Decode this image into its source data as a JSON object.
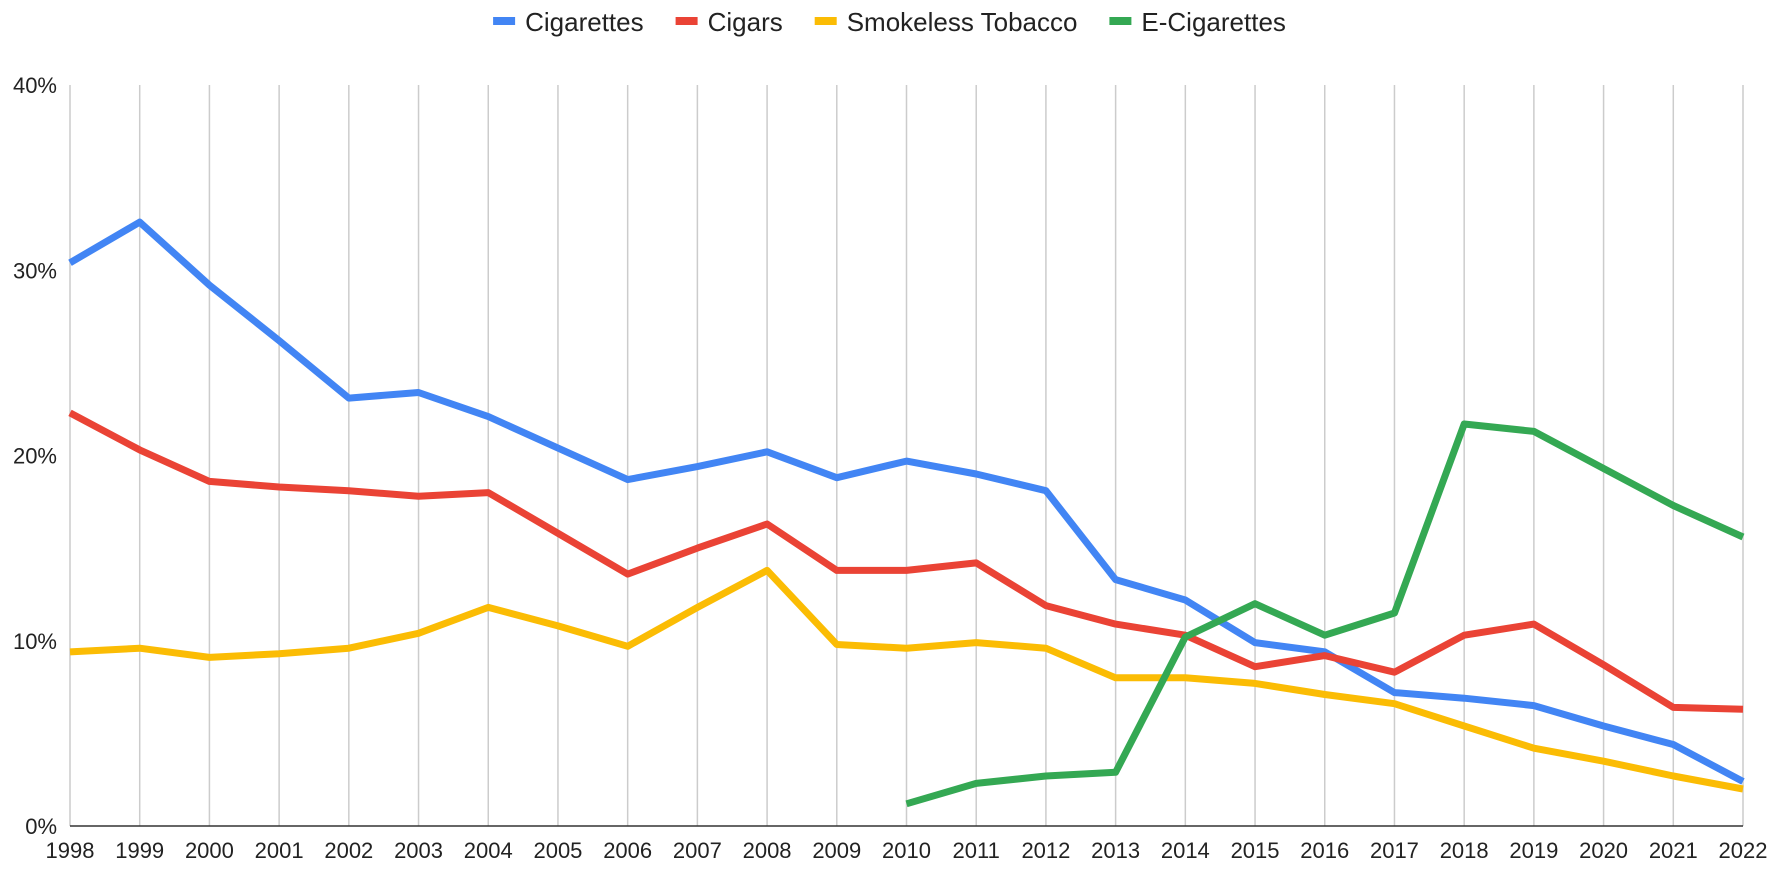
{
  "chart_data": {
    "type": "line",
    "title": "",
    "xlabel": "",
    "ylabel": "",
    "legend_position": "top",
    "grid": "vertical",
    "ylim": [
      0,
      40
    ],
    "y_ticks": [
      "0%",
      "10%",
      "20%",
      "30%",
      "40%"
    ],
    "x": [
      "1998",
      "1999",
      "2000",
      "2001",
      "2002",
      "2003",
      "2004",
      "2005",
      "2006",
      "2007",
      "2008",
      "2009",
      "2010",
      "2011",
      "2012",
      "2013",
      "2014",
      "2015",
      "2016",
      "2017",
      "2018",
      "2019",
      "2020",
      "2021",
      "2022"
    ],
    "series": [
      {
        "name": "Cigarettes",
        "color": "#4285F4",
        "values": [
          30.4,
          32.6,
          29.2,
          26.2,
          23.1,
          23.4,
          22.1,
          20.4,
          18.7,
          19.4,
          20.2,
          18.8,
          19.7,
          19.0,
          18.1,
          13.3,
          12.2,
          9.9,
          9.4,
          7.2,
          6.9,
          6.5,
          5.4,
          4.4,
          2.4
        ]
      },
      {
        "name": "Cigars",
        "color": "#EA4335",
        "values": [
          22.3,
          20.3,
          18.6,
          18.3,
          18.1,
          17.8,
          18.0,
          15.8,
          13.6,
          15.0,
          16.3,
          13.8,
          13.8,
          14.2,
          11.9,
          10.9,
          10.3,
          8.6,
          9.2,
          8.3,
          10.3,
          10.9,
          8.7,
          6.4,
          6.3
        ]
      },
      {
        "name": "Smokeless Tobacco",
        "color": "#FBBC04",
        "values": [
          9.4,
          9.6,
          9.1,
          9.3,
          9.6,
          10.4,
          11.8,
          10.8,
          9.7,
          11.8,
          13.8,
          9.8,
          9.6,
          9.9,
          9.6,
          8.0,
          8.0,
          7.7,
          7.1,
          6.6,
          5.4,
          4.2,
          3.5,
          2.7,
          2.0
        ]
      },
      {
        "name": "E-Cigarettes",
        "color": "#34A853",
        "values": [
          null,
          null,
          null,
          null,
          null,
          null,
          null,
          null,
          null,
          null,
          null,
          null,
          1.2,
          2.3,
          2.7,
          2.9,
          10.2,
          12.0,
          10.3,
          11.5,
          21.7,
          21.3,
          19.3,
          17.3,
          15.6
        ]
      }
    ]
  }
}
